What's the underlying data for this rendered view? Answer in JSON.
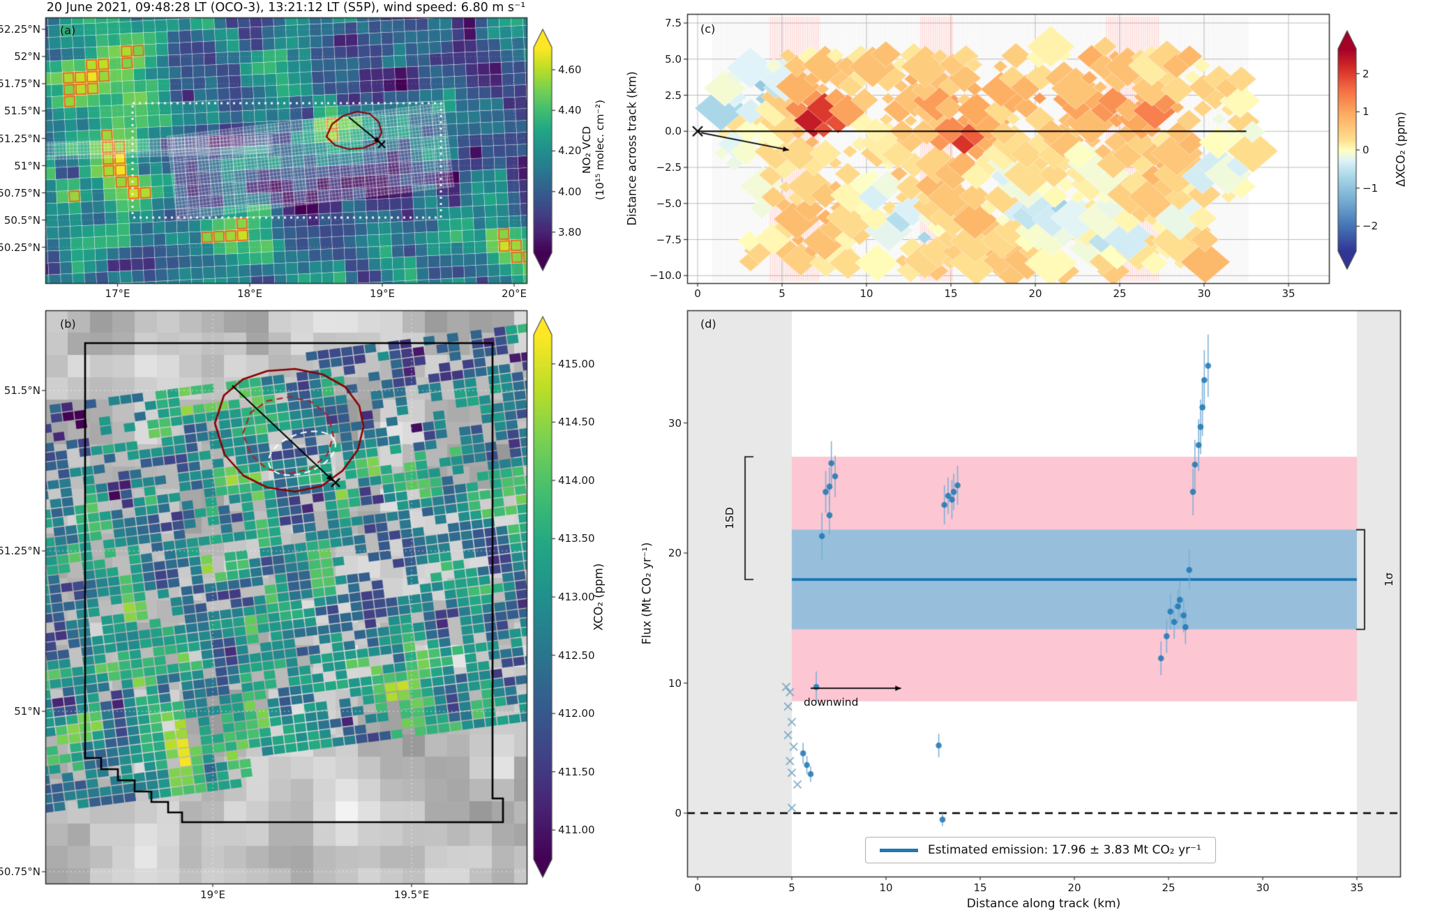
{
  "title": "20 June 2021, 09:48:28 LT (OCO-3), 13:21:12 LT (S5P), wind speed: 6.80 m s⁻¹",
  "chart_data": [
    {
      "id": "a",
      "panel_label": "(a)",
      "type": "heatmap",
      "description": "S5P TROPOMI NO₂ vertical column density map",
      "x_ticks": [
        "17°E",
        "18°E",
        "19°E",
        "20°E"
      ],
      "y_ticks": [
        "52.25°N",
        "52°N",
        "51.75°N",
        "51.5°N",
        "51.25°N",
        "51°N",
        "50.75°N",
        "50.5°N",
        "50.25°N"
      ],
      "overlays": [
        "white dotted rectangle (area of panel b)",
        "white mesh showing OCO-3 swath",
        "dark red plume contour",
        "black wind arrow with x at source"
      ],
      "colorbar": {
        "label": [
          "NO₂ VCD",
          "(10¹⁵ molec. cm⁻²)"
        ],
        "ticks": [
          "4.60",
          "4.40",
          "4.20",
          "4.00",
          "3.80"
        ],
        "tick_values": [
          4.6,
          4.4,
          4.2,
          4.0,
          3.8
        ],
        "vmin": 3.7,
        "vmax": 4.71,
        "colormap": "viridis"
      }
    },
    {
      "id": "b",
      "panel_label": "(b)",
      "type": "heatmap",
      "description": "OCO-3 XCO₂ snapshot area map over grayscale background",
      "x_ticks": [
        "19°E",
        "19.5°E"
      ],
      "y_ticks": [
        "51.5°N",
        "51.25°N",
        "51°N",
        "50.75°N"
      ],
      "overlays": [
        "black boundary polygon",
        "dark red plume contour",
        "red dashed inner contour",
        "white dashed contour",
        "black wind arrow with x at source"
      ],
      "colorbar": {
        "label": [
          "XCO₂ (ppm)"
        ],
        "ticks": [
          "415.00",
          "414.50",
          "414.00",
          "413.50",
          "413.00",
          "412.50",
          "412.00",
          "411.50",
          "411.00"
        ],
        "tick_values": [
          415.0,
          414.5,
          414.0,
          413.5,
          413.0,
          412.5,
          412.0,
          411.5,
          411.0
        ],
        "vmin": 410.75,
        "vmax": 415.25,
        "colormap": "viridis"
      }
    },
    {
      "id": "c",
      "panel_label": "(c)",
      "type": "heatmap",
      "ylabel": "Distance across track (km)",
      "x_ticks": [
        "0",
        "5",
        "10",
        "15",
        "20",
        "25",
        "30",
        "35"
      ],
      "x_tick_values": [
        0,
        5,
        10,
        15,
        20,
        25,
        30,
        35
      ],
      "y_ticks": [
        "7.5",
        "5.0",
        "2.5",
        "0.0",
        "−2.5",
        "−5.0",
        "−7.5",
        "−10.0"
      ],
      "y_tick_values": [
        7.5,
        5.0,
        2.5,
        0.0,
        -2.5,
        -5.0,
        -7.5,
        -10.0
      ],
      "overlays": [
        "black along-track line at 0 km",
        "x marker at origin",
        "black wind arrow",
        "red shaded vertical sounding stripes",
        "gray vertical sounding stripes"
      ],
      "colorbar": {
        "label": [
          "ΔXCO₂ (ppm)"
        ],
        "ticks": [
          "2",
          "1",
          "0",
          "−1",
          "−2"
        ],
        "tick_values": [
          2,
          1,
          0,
          -1,
          -2
        ],
        "vmin": -2.65,
        "vmax": 2.65,
        "colormap": "RdYlBu_r"
      }
    },
    {
      "id": "d",
      "panel_label": "(d)",
      "type": "scatter",
      "xlabel": "Distance along track (km)",
      "ylabel": "Flux (Mt CO₂ yr⁻¹)",
      "x_ticks": [
        "0",
        "5",
        "10",
        "15",
        "20",
        "25",
        "30",
        "35"
      ],
      "x_tick_values": [
        0,
        5,
        10,
        15,
        20,
        25,
        30,
        35
      ],
      "y_ticks": [
        "0",
        "10",
        "20",
        "30"
      ],
      "y_tick_values": [
        0,
        10,
        20,
        30
      ],
      "estimated_emission": 17.96,
      "uncertainty_1sigma": 3.83,
      "mean_line": 17.96,
      "band_1sd": [
        8.6,
        27.4
      ],
      "band_1sigma": [
        14.13,
        21.79
      ],
      "shaded_x_below": 5,
      "shaded_x_above": 35,
      "zero_line": 0,
      "legend": "Estimated emission: 17.96 ± 3.83 Mt CO₂ yr⁻¹",
      "annotations": {
        "downwind": "downwind",
        "sd": "1SD",
        "sigma": "1σ"
      },
      "points": [
        [
          5.6,
          4.6,
          0.8
        ],
        [
          5.8,
          3.7,
          0.7
        ],
        [
          6.0,
          3.0,
          0.6
        ],
        [
          6.3,
          9.7,
          1.2
        ],
        [
          6.6,
          21.3,
          1.8
        ],
        [
          6.8,
          24.7,
          1.6
        ],
        [
          7.0,
          22.9,
          1.5
        ],
        [
          7.0,
          25.1,
          1.5
        ],
        [
          7.1,
          26.9,
          1.7
        ],
        [
          7.3,
          25.9,
          1.6
        ],
        [
          12.8,
          5.2,
          0.9
        ],
        [
          13.0,
          -0.5,
          0.5
        ],
        [
          13.1,
          23.7,
          1.5
        ],
        [
          13.3,
          24.4,
          1.4
        ],
        [
          13.5,
          24.1,
          1.5
        ],
        [
          13.6,
          24.7,
          1.4
        ],
        [
          13.8,
          25.2,
          1.5
        ],
        [
          24.6,
          11.9,
          1.3
        ],
        [
          24.9,
          13.6,
          1.3
        ],
        [
          25.1,
          15.5,
          1.4
        ],
        [
          25.3,
          14.7,
          1.3
        ],
        [
          25.5,
          15.9,
          1.3
        ],
        [
          25.6,
          16.4,
          1.4
        ],
        [
          25.8,
          15.2,
          1.3
        ],
        [
          25.9,
          14.3,
          1.3
        ],
        [
          26.1,
          18.7,
          1.5
        ],
        [
          26.3,
          24.7,
          1.8
        ],
        [
          26.4,
          26.8,
          1.9
        ],
        [
          26.6,
          28.3,
          2.0
        ],
        [
          26.7,
          29.7,
          2.1
        ],
        [
          26.8,
          31.2,
          2.2
        ],
        [
          26.9,
          33.3,
          2.3
        ],
        [
          27.1,
          34.4,
          2.4
        ]
      ],
      "cross_points": [
        [
          4.7,
          9.7
        ],
        [
          4.9,
          9.3
        ],
        [
          4.8,
          8.2
        ],
        [
          5.0,
          7.0
        ],
        [
          4.8,
          6.0
        ],
        [
          5.1,
          5.1
        ],
        [
          4.9,
          4.0
        ],
        [
          5.0,
          3.1
        ],
        [
          5.0,
          0.4
        ],
        [
          5.3,
          2.2
        ]
      ]
    }
  ]
}
